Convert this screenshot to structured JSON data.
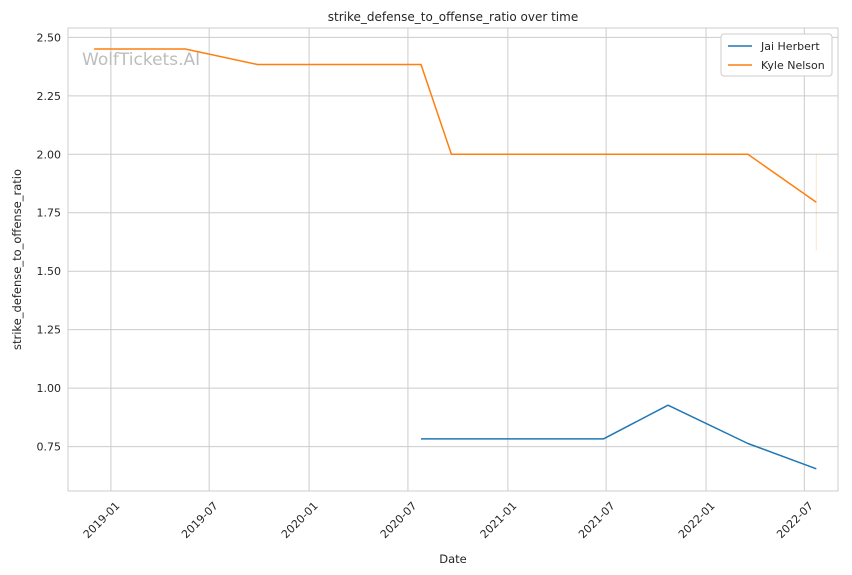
{
  "chart_data": {
    "type": "line",
    "title": "strike_defense_to_offense_ratio over time",
    "xlabel": "Date",
    "ylabel": "strike_defense_to_offense_ratio",
    "watermark": "WolfTickets.AI",
    "x_ticks": [
      "2019-01",
      "2019-07",
      "2020-01",
      "2020-07",
      "2021-01",
      "2021-07",
      "2022-01",
      "2022-07"
    ],
    "y_ticks": [
      0.75,
      1.0,
      1.25,
      1.5,
      1.75,
      2.0,
      2.25,
      2.5
    ],
    "y_tick_labels": [
      "0.75",
      "1.00",
      "1.25",
      "1.50",
      "1.75",
      "2.00",
      "2.25",
      "2.50"
    ],
    "xlim": [
      "2018-10-14",
      "2022-09-01"
    ],
    "ylim": [
      0.56,
      2.54
    ],
    "grid": true,
    "legend_position": "top-right",
    "series": [
      {
        "name": "Jai Herbert",
        "color": "#1f77b4",
        "points": [
          {
            "x": "2020-07-25",
            "y": 0.783
          },
          {
            "x": "2021-06-26",
            "y": 0.783
          },
          {
            "x": "2021-10-23",
            "y": 0.927
          },
          {
            "x": "2022-03-19",
            "y": 0.763
          },
          {
            "x": "2022-07-23",
            "y": 0.655
          }
        ]
      },
      {
        "name": "Kyle Nelson",
        "color": "#ff7f0e",
        "points": [
          {
            "x": "2018-12-01",
            "y": 2.45
          },
          {
            "x": "2019-05-18",
            "y": 2.45
          },
          {
            "x": "2019-09-28",
            "y": 2.384
          },
          {
            "x": "2020-07-25",
            "y": 2.384
          },
          {
            "x": "2020-09-19",
            "y": 2.0
          },
          {
            "x": "2022-03-19",
            "y": 2.0
          },
          {
            "x": "2022-07-23",
            "y": 1.795
          }
        ],
        "error_band": {
          "x": "2022-07-23",
          "low": 1.59,
          "high": 2.0
        }
      }
    ]
  }
}
